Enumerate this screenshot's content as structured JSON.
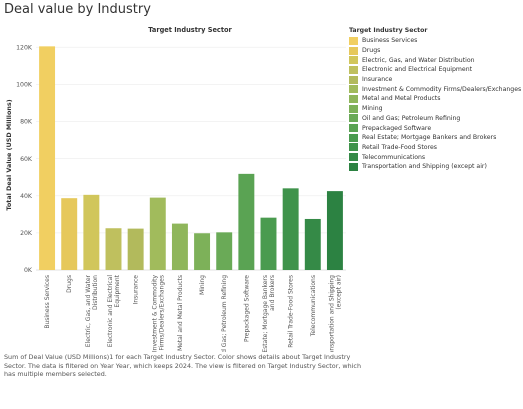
{
  "page": {
    "title": "Deal value by Industry",
    "caption": "Sum of Deal Value (USD Millions)1 for each Target Industry Sector.  Color shows details about Target Industry Sector. The data is filtered on Year Year, which keeps 2024. The view is filtered on Target Industry Sector, which has multiple members selected."
  },
  "legend": {
    "title": "Target Industry Sector",
    "items": [
      {
        "label": "Business Services",
        "color": "#f1cf61"
      },
      {
        "label": "Drugs",
        "color": "#e6c85b"
      },
      {
        "label": "Electric, Gas, and Water Distribution",
        "color": "#d1c65b"
      },
      {
        "label": "Electronic and Electrical Equipment",
        "color": "#bfc05e"
      },
      {
        "label": "Insurance",
        "color": "#b2ba5c"
      },
      {
        "label": "Investment & Commodity Firms/Dealers/Exchanges",
        "color": "#a1bb5c"
      },
      {
        "label": "Metal and Metal Products",
        "color": "#8fb65b"
      },
      {
        "label": "Mining",
        "color": "#7db159"
      },
      {
        "label": "Oil and Gas; Petroleum Refining",
        "color": "#6aaa57"
      },
      {
        "label": "Prepackaged Software",
        "color": "#5aa353"
      },
      {
        "label": "Real Estate; Mortgage Bankers and Brokers",
        "color": "#4a9b4f"
      },
      {
        "label": "Retail Trade-Food Stores",
        "color": "#3f934b"
      },
      {
        "label": "Telecommunications",
        "color": "#358a47"
      },
      {
        "label": "Transportation and Shipping (except air)",
        "color": "#2c8242"
      }
    ]
  },
  "chart_data": {
    "type": "bar",
    "title": "Target Industry Sector",
    "ylabel": "Total Deal Value (USD Millions)",
    "xlabel": "",
    "ylim": [
      0,
      125000
    ],
    "yticks": [
      0,
      20000,
      40000,
      60000,
      80000,
      100000,
      120000
    ],
    "ytick_labels": [
      "0K",
      "20K",
      "40K",
      "60K",
      "80K",
      "100K",
      "120K"
    ],
    "grid": true,
    "legend_position": "right",
    "categories": [
      "Business Services",
      "Drugs",
      "Electric, Gas, and Water Distribution",
      "Electronic and Electrical Equipment",
      "Insurance",
      "Investment & Commodity Firms/Dealers/Exchanges",
      "Metal and Metal Products",
      "Mining",
      "Oil and Gas; Petroleum Refining",
      "Prepackaged Software",
      "Real Estate; Mortgage Bankers and Brokers",
      "Retail Trade-Food Stores",
      "Telecommunications",
      "Transportation and Shipping (except air)"
    ],
    "category_tick_labels": [
      [
        "Business Services"
      ],
      [
        "Drugs"
      ],
      [
        "Electric, Gas, and Water",
        "Distribution"
      ],
      [
        "Electronic and Electrical",
        "Equipment"
      ],
      [
        "Insurance"
      ],
      [
        "Investment & Commodity",
        "Firms/Dealers/Exchanges"
      ],
      [
        "Metal and Metal Products"
      ],
      [
        "Mining"
      ],
      [
        "Oil and Gas; Petroleum Refining"
      ],
      [
        "Prepackaged Software"
      ],
      [
        "Real Estate; Mortgage Bankers",
        "and Brokers"
      ],
      [
        "Retail Trade-Food Stores"
      ],
      [
        "Telecommunications"
      ],
      [
        "Transportation and Shipping",
        "(except air)"
      ]
    ],
    "values": [
      120500,
      38700,
      40500,
      22500,
      22300,
      39000,
      25000,
      19800,
      20300,
      51800,
      28200,
      44000,
      27500,
      42500
    ],
    "colors": [
      "#f1cf61",
      "#e6c85b",
      "#d1c65b",
      "#bfc05e",
      "#b2ba5c",
      "#a1bb5c",
      "#8fb65b",
      "#7db159",
      "#6aaa57",
      "#5aa353",
      "#4a9b4f",
      "#3f934b",
      "#358a47",
      "#2c8242"
    ]
  }
}
